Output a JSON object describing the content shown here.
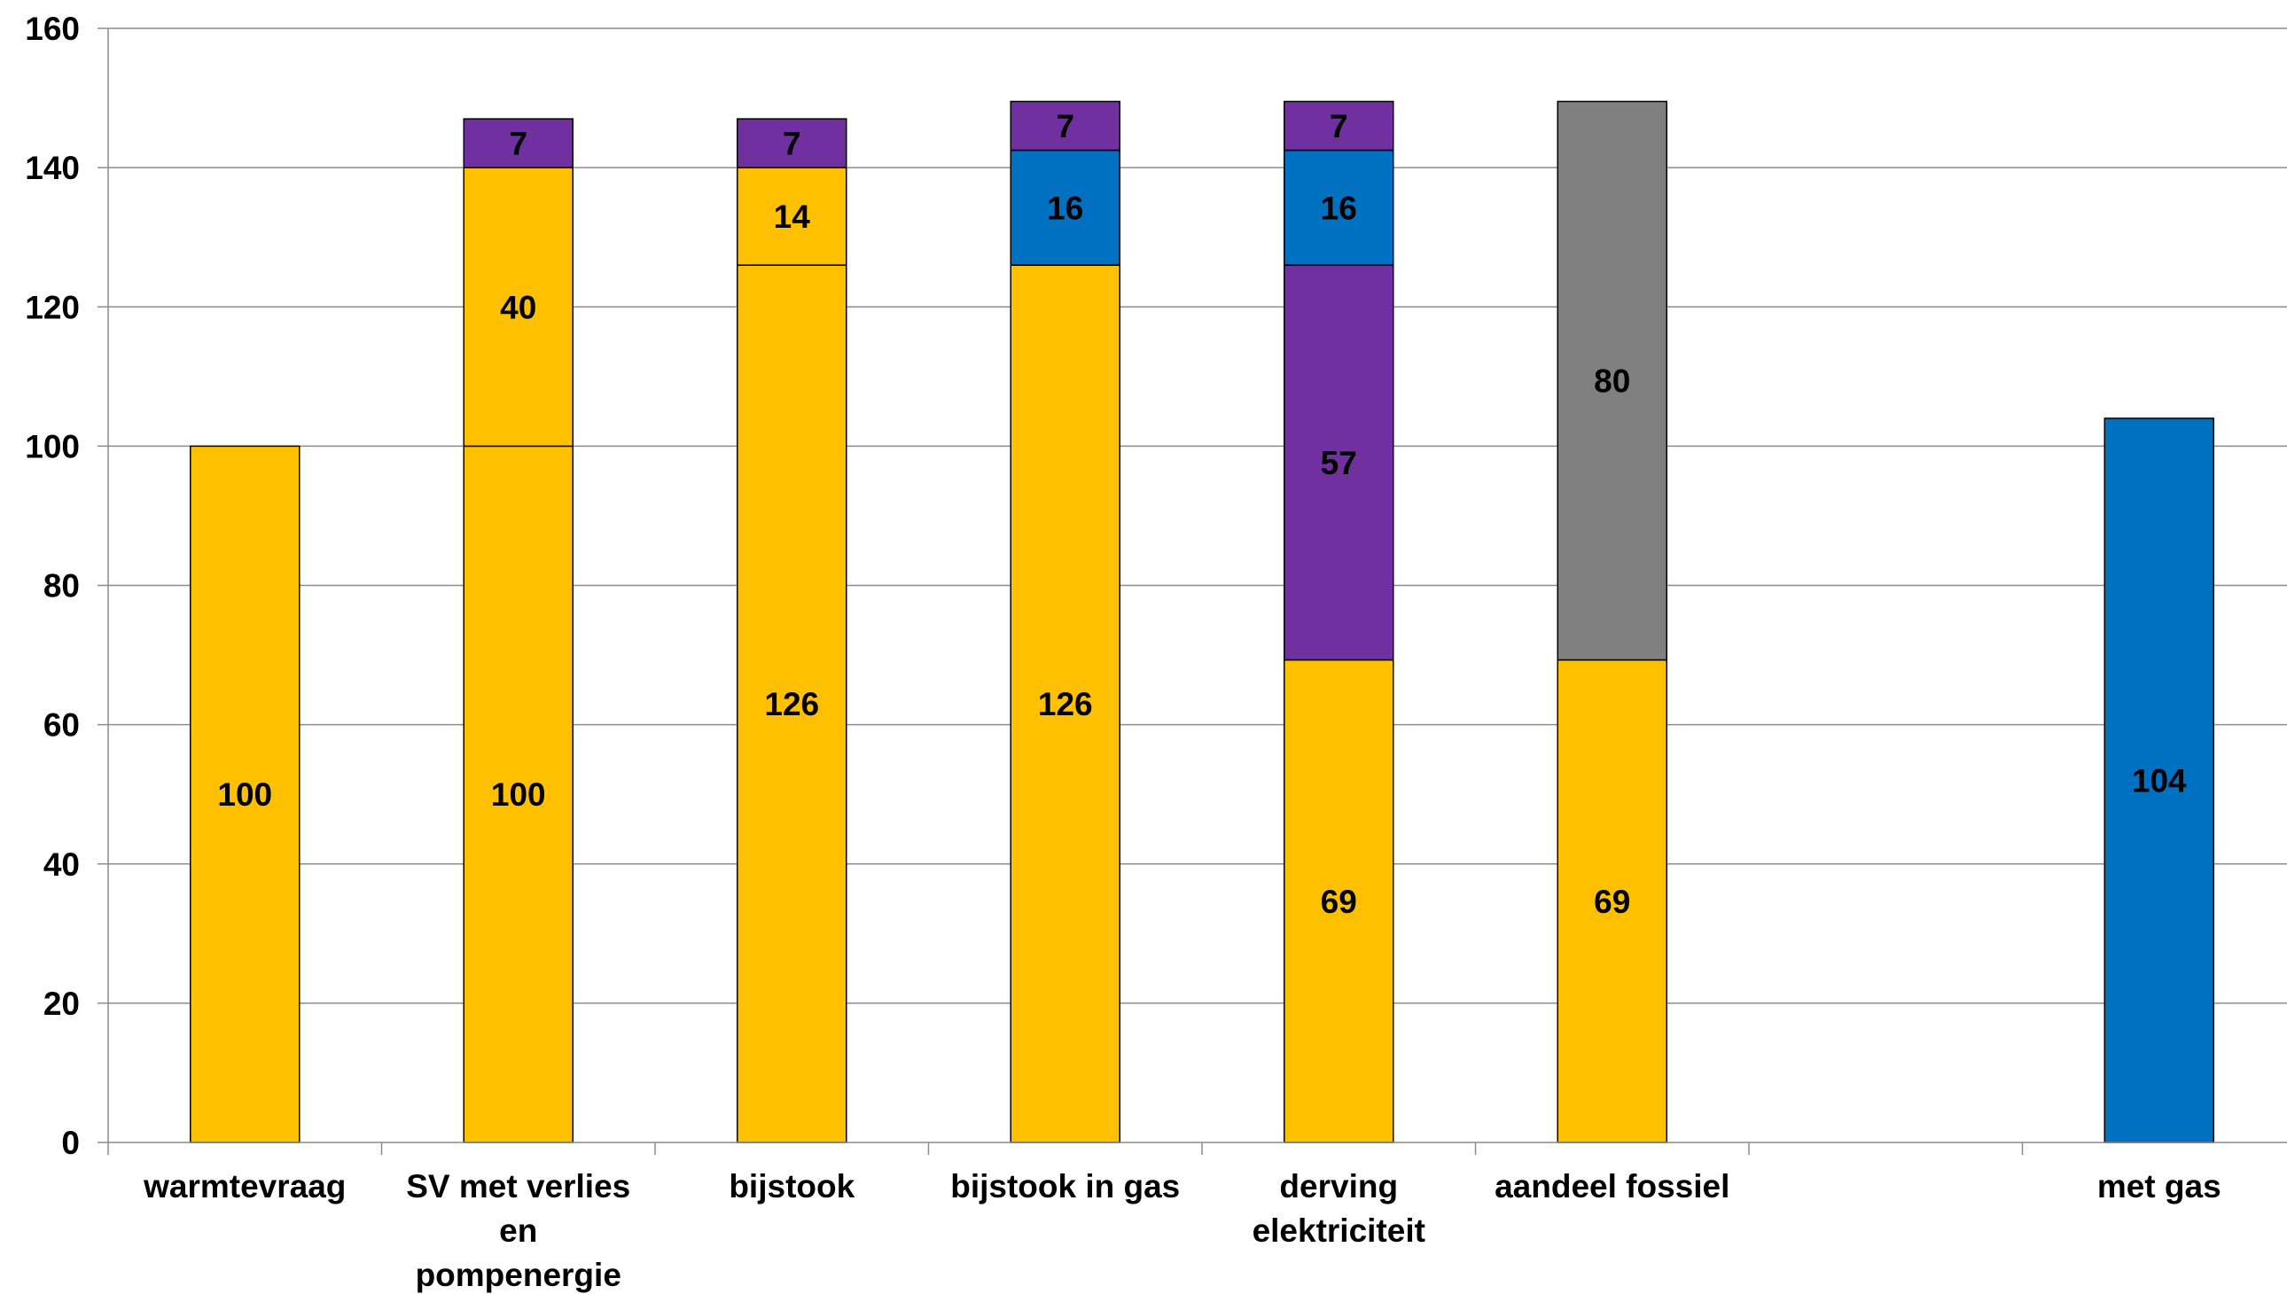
{
  "chart_data": {
    "type": "bar",
    "stacked": true,
    "ylim": [
      0,
      160
    ],
    "y_ticks": [
      0,
      20,
      40,
      60,
      80,
      100,
      120,
      140,
      160
    ],
    "grid": true,
    "legend": "none",
    "categories": [
      [
        "warmtevraag"
      ],
      [
        "SV met verlies",
        "en",
        "pompenergie"
      ],
      [
        "bijstook"
      ],
      [
        "bijstook in gas"
      ],
      [
        "derving",
        "elektriciteit"
      ],
      [
        "aandeel fossiel"
      ],
      [],
      [
        "met gas"
      ]
    ],
    "stacks": [
      [
        {
          "value": 100,
          "label": "100",
          "color": "#FFC000"
        }
      ],
      [
        {
          "value": 100,
          "label": "100",
          "color": "#FFC000"
        },
        {
          "value": 40,
          "label": "40",
          "color": "#FFC000"
        },
        {
          "value": 7,
          "label": "7",
          "color": "#7030A0"
        }
      ],
      [
        {
          "value": 126,
          "label": "126",
          "color": "#FFC000"
        },
        {
          "value": 14,
          "label": "14",
          "color": "#FFC000"
        },
        {
          "value": 7,
          "label": "7",
          "color": "#7030A0"
        }
      ],
      [
        {
          "value": 126,
          "label": "126",
          "color": "#FFC000"
        },
        {
          "value": 16.5,
          "label": "16",
          "color": "#0070C0"
        },
        {
          "value": 7,
          "label": "7",
          "color": "#7030A0"
        }
      ],
      [
        {
          "value": 69.3,
          "label": "69",
          "color": "#FFC000"
        },
        {
          "value": 56.7,
          "label": "57",
          "color": "#7030A0"
        },
        {
          "value": 16.5,
          "label": "16",
          "color": "#0070C0"
        },
        {
          "value": 7,
          "label": "7",
          "color": "#7030A0"
        }
      ],
      [
        {
          "value": 69.3,
          "label": "69",
          "color": "#FFC000"
        },
        {
          "value": 80.2,
          "label": "80",
          "color": "#808080"
        }
      ],
      [],
      [
        {
          "value": 104,
          "label": "104",
          "color": "#0070C0"
        }
      ]
    ]
  }
}
